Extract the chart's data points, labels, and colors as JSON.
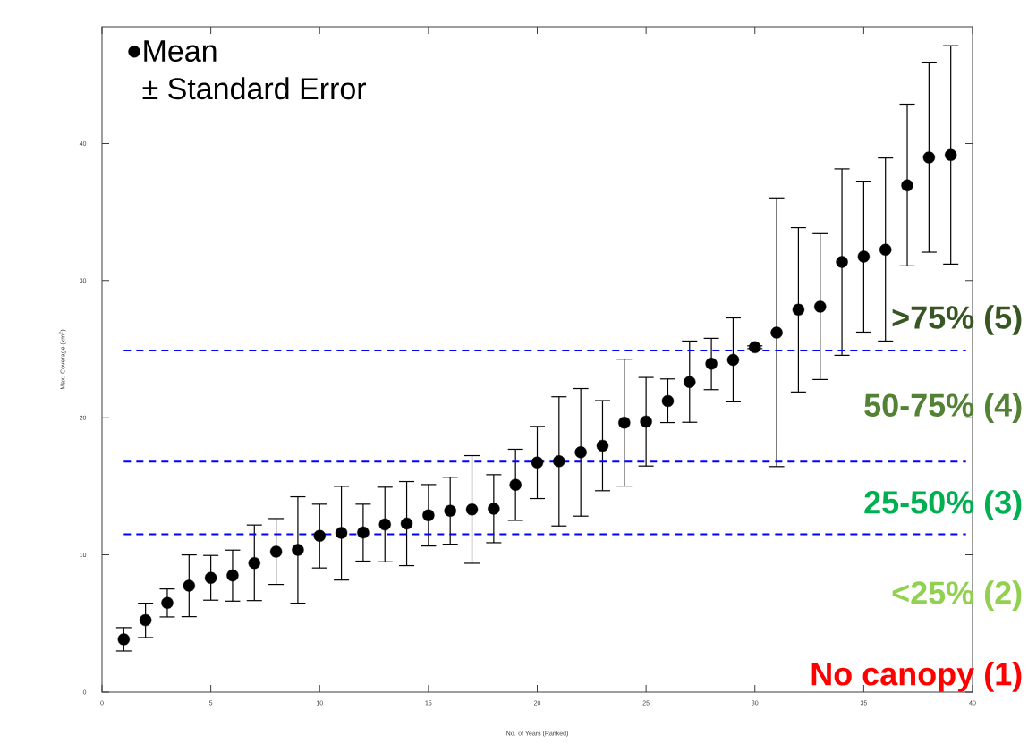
{
  "chart_data": {
    "type": "scatter",
    "xlabel": "No. of Years (Ranked)",
    "ylabel": "Max. Coverage (km$^{2}$)",
    "annotations": [
      "± Standard Error",
      ">75% (5)",
      "50-75% (4)",
      "25-50% (3)",
      "<25% (2)",
      "No canopy (1)"
    ],
    "x": [
      1,
      2,
      3,
      4,
      5,
      6,
      7,
      8,
      9,
      10,
      11,
      12,
      13,
      14,
      15,
      16,
      17,
      18,
      19,
      20,
      21,
      22,
      23,
      24,
      25,
      26,
      27,
      28,
      29,
      30,
      31,
      32,
      33,
      34,
      35,
      36,
      37,
      38,
      39
    ],
    "series": [
      {
        "name": "Mean",
        "color": "#000000",
        "values": [
          3.85,
          5.24,
          6.5,
          7.76,
          8.33,
          8.5,
          9.41,
          10.24,
          10.37,
          11.39,
          11.61,
          11.63,
          12.22,
          12.29,
          12.89,
          13.22,
          13.31,
          13.37,
          15.11,
          16.74,
          16.83,
          17.48,
          17.96,
          19.64,
          19.72,
          21.22,
          22.61,
          23.94,
          24.22,
          25.14,
          26.2,
          27.88,
          28.1,
          31.36,
          31.75,
          32.25,
          36.94,
          38.98,
          39.16
        ],
        "errors": [
          [
            3.0,
            4.7
          ],
          [
            3.98,
            6.48
          ],
          [
            5.48,
            7.52
          ],
          [
            5.5,
            10.0
          ],
          [
            6.7,
            9.96
          ],
          [
            6.63,
            10.35
          ],
          [
            6.67,
            12.18
          ],
          [
            7.85,
            12.65
          ],
          [
            6.48,
            14.24
          ],
          [
            9.05,
            13.7
          ],
          [
            8.17,
            15.0
          ],
          [
            9.55,
            13.7
          ],
          [
            9.5,
            14.94
          ],
          [
            9.22,
            15.35
          ],
          [
            10.65,
            15.13
          ],
          [
            10.78,
            15.66
          ],
          [
            9.39,
            17.24
          ],
          [
            10.89,
            15.85
          ],
          [
            12.52,
            17.7
          ],
          [
            14.11,
            19.37
          ],
          [
            12.11,
            21.53
          ],
          [
            12.83,
            22.13
          ],
          [
            14.68,
            21.25
          ],
          [
            15.02,
            24.27
          ],
          [
            16.48,
            22.94
          ],
          [
            19.65,
            22.83
          ],
          [
            19.67,
            25.59
          ],
          [
            22.05,
            25.79
          ],
          [
            21.16,
            27.28
          ],
          [
            25.04,
            25.24
          ],
          [
            16.44,
            36.03
          ],
          [
            21.88,
            33.86
          ],
          [
            22.79,
            33.42
          ],
          [
            24.55,
            38.14
          ],
          [
            26.24,
            37.25
          ],
          [
            25.59,
            38.94
          ],
          [
            31.07,
            42.86
          ],
          [
            32.07,
            45.92
          ],
          [
            31.2,
            47.12
          ]
        ]
      }
    ],
    "xlim": [
      0,
      40
    ],
    "ylim": [
      0,
      48.5
    ],
    "xticks": [
      0,
      5,
      10,
      15,
      20,
      25,
      30,
      35,
      40
    ],
    "yticks": [
      0,
      10,
      20,
      30,
      40
    ],
    "ref_lines": [
      {
        "axis": "y",
        "value": 24.9,
        "color": "#0000ff",
        "line_style": "dashed"
      },
      {
        "axis": "y",
        "value": 16.8,
        "color": "#0000ff",
        "line_style": "dashed"
      },
      {
        "axis": "y",
        "value": 11.5,
        "color": "#0000ff",
        "line_style": "dashed"
      }
    ],
    "legend": "top left",
    "marker": "circle"
  }
}
